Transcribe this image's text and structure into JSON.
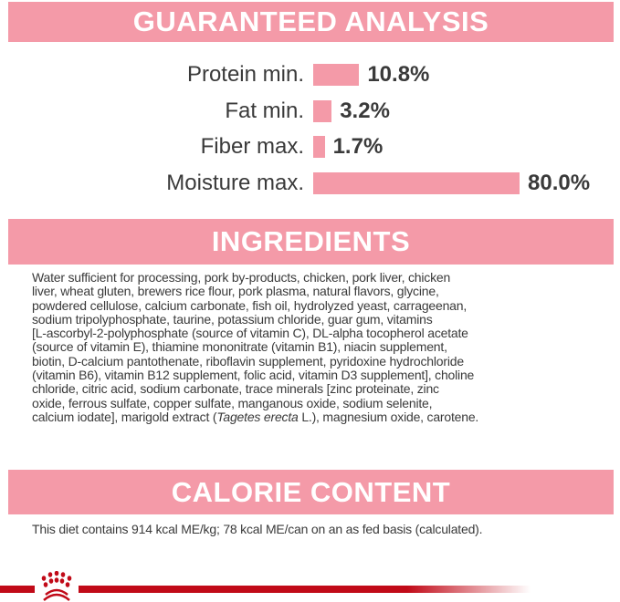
{
  "analysis": {
    "title": "GUARANTEED ANALYSIS",
    "bar_color": "#f49aa8",
    "rows": [
      {
        "label": "Protein min.",
        "value": 10.8,
        "display": "10.8%"
      },
      {
        "label": "Fat min.",
        "value": 3.2,
        "display": "3.2%"
      },
      {
        "label": "Fiber max.",
        "value": 1.7,
        "display": "1.7%"
      },
      {
        "label": "Moisture max.",
        "value": 80.0,
        "display": "80.0%"
      }
    ]
  },
  "ingredients": {
    "title": "INGREDIENTS",
    "lines": [
      "Water sufficient for processing, pork by-products, chicken, pork liver, chicken",
      "liver, wheat gluten, brewers rice flour, pork plasma, natural flavors, glycine,",
      "powdered cellulose, calcium carbonate, fish oil, hydrolyzed yeast, carrageenan,",
      "sodium tripolyphosphate, taurine, potassium chloride, guar gum, vitamins",
      "[L-ascorbyl-2-polyphosphate (source of vitamin C), DL-alpha tocopherol acetate",
      "(source of vitamin E), thiamine mononitrate (vitamin B1), niacin supplement,",
      "biotin, D-calcium pantothenate, riboflavin supplement, pyridoxine hydrochloride",
      "(vitamin B6), vitamin B12 supplement, folic acid, vitamin D3 supplement], choline",
      "chloride, citric acid, sodium carbonate, trace minerals [zinc proteinate, zinc",
      "oxide, ferrous sulfate, copper sulfate, manganous oxide, sodium selenite,"
    ],
    "last_line": {
      "before": "calcium iodate], marigold extract (",
      "italic": "Tagetes erecta",
      "after": " L.), magnesium oxide, carotene."
    }
  },
  "calorie": {
    "title": "CALORIE CONTENT",
    "text": "This diet contains 914 kcal ME/kg; 78 kcal ME/can on an as fed basis (calculated)."
  },
  "footer": {
    "logo": "royal-canin-crown-logo",
    "line_color": "#c10a18"
  }
}
